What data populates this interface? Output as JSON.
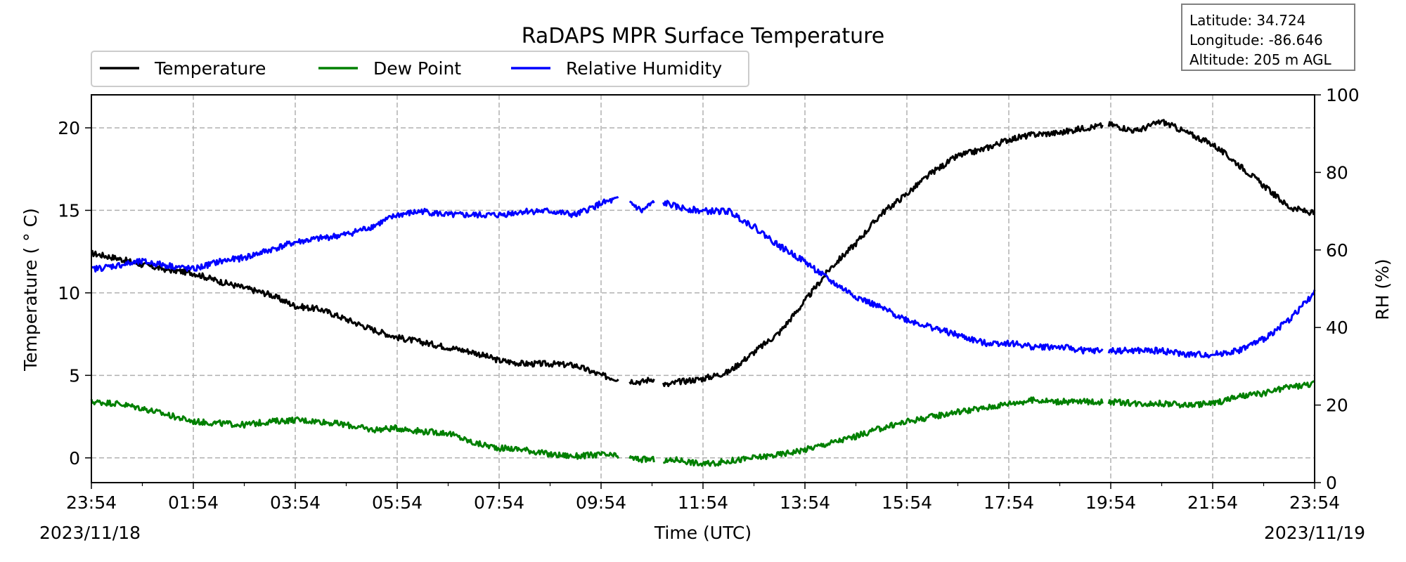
{
  "info_box": {
    "latitude": "Latitude: 34.724",
    "longitude": "Longitude: -86.646",
    "altitude": "Altitude: 205 m AGL"
  },
  "chart_data": {
    "type": "line",
    "title": "RaDAPS MPR Surface Temperature",
    "xlabel": "Time (UTC)",
    "ylabel": "Temperature ($^\\circ$C)",
    "ylabel_display": "Temperature ( ° C)",
    "y2label": "RH (%)",
    "x_ticks": [
      "23:54",
      "01:54",
      "03:54",
      "05:54",
      "07:54",
      "09:54",
      "11:54",
      "13:54",
      "15:54",
      "17:54",
      "19:54",
      "21:54",
      "23:54"
    ],
    "x_tick_hours": [
      0,
      2,
      4,
      6,
      8,
      10,
      12,
      14,
      16,
      18,
      20,
      22,
      24
    ],
    "start_date": "2023/11/18",
    "end_date": "2023/11/19",
    "xlim_hours": [
      0,
      24
    ],
    "ylim": [
      -1.5,
      22
    ],
    "y_ticks": [
      0,
      5,
      10,
      15,
      20
    ],
    "y2lim": [
      0,
      100
    ],
    "y2_ticks": [
      0,
      20,
      40,
      60,
      80,
      100
    ],
    "grid": true,
    "legend_location": "top-left",
    "colors": {
      "temperature": "#000000",
      "dew_point": "#008000",
      "rh": "#0000ff",
      "grid": "#b0b0b0"
    },
    "series": [
      {
        "name": "Temperature",
        "axis": "left",
        "x": [
          0,
          0.5,
          1,
          1.5,
          2,
          2.5,
          3,
          3.5,
          4,
          4.5,
          5,
          5.5,
          6,
          6.5,
          7,
          7.5,
          8,
          8.5,
          9,
          9.5,
          10,
          10.3,
          10.5,
          10.8,
          11,
          11.3,
          11.5,
          12,
          12.5,
          13,
          13.5,
          14,
          14.5,
          15,
          15.5,
          16,
          16.5,
          17,
          17.5,
          18,
          18.5,
          19,
          19.5,
          20,
          20.5,
          21,
          21.5,
          22,
          22.5,
          23,
          23.5,
          24
        ],
        "y": [
          12.4,
          12.1,
          11.7,
          11.4,
          11.2,
          10.7,
          10.3,
          9.9,
          9.2,
          9.0,
          8.4,
          7.8,
          7.3,
          7.0,
          6.7,
          6.4,
          5.9,
          5.7,
          5.7,
          5.6,
          5.0,
          4.8,
          4.7,
          4.6,
          4.8,
          4.4,
          4.6,
          4.8,
          5.2,
          6.4,
          7.6,
          9.5,
          11.5,
          13.0,
          14.8,
          16.0,
          17.3,
          18.3,
          18.7,
          19.3,
          19.6,
          19.7,
          20.0,
          20.2,
          19.8,
          20.4,
          19.7,
          19.0,
          17.8,
          16.5,
          15.2,
          14.8
        ],
        "gaps": [
          [
            10.35,
            10.55
          ],
          [
            11.05,
            11.2
          ],
          [
            19.85,
            19.95
          ]
        ]
      },
      {
        "name": "Dew Point",
        "axis": "left",
        "x": [
          0,
          0.5,
          1,
          1.5,
          2,
          2.5,
          3,
          3.5,
          4,
          4.5,
          5,
          5.5,
          6,
          6.5,
          7,
          7.5,
          8,
          8.5,
          9,
          9.5,
          10,
          10.3,
          10.5,
          10.8,
          11,
          11.3,
          11.5,
          12,
          12.5,
          13,
          13.5,
          14,
          14.5,
          15,
          15.5,
          16,
          16.5,
          17,
          17.5,
          18,
          18.5,
          19,
          19.5,
          20,
          20.5,
          21,
          21.5,
          22,
          22.5,
          23,
          23.5,
          24
        ],
        "y": [
          3.4,
          3.3,
          3.0,
          2.6,
          2.2,
          2.1,
          2.0,
          2.2,
          2.3,
          2.2,
          2.0,
          1.7,
          1.8,
          1.6,
          1.5,
          0.9,
          0.6,
          0.5,
          0.2,
          0.1,
          0.2,
          0.1,
          0.0,
          -0.1,
          -0.1,
          -0.2,
          -0.1,
          -0.4,
          -0.2,
          0.0,
          0.2,
          0.5,
          0.9,
          1.3,
          1.8,
          2.2,
          2.5,
          2.8,
          3.0,
          3.3,
          3.5,
          3.4,
          3.4,
          3.4,
          3.3,
          3.3,
          3.2,
          3.3,
          3.7,
          3.9,
          4.3,
          4.5
        ],
        "gaps": [
          [
            10.35,
            10.55
          ],
          [
            11.05,
            11.2
          ],
          [
            19.85,
            19.95
          ]
        ]
      },
      {
        "name": "Relative Humidity",
        "axis": "right",
        "x": [
          0,
          0.5,
          1,
          1.5,
          2,
          2.5,
          3,
          3.5,
          4,
          4.5,
          5,
          5.5,
          6,
          6.5,
          7,
          7.5,
          8,
          8.5,
          9,
          9.5,
          10,
          10.3,
          10.5,
          10.8,
          11,
          11.3,
          11.5,
          12,
          12.5,
          13,
          13.5,
          14,
          14.5,
          15,
          15.5,
          16,
          16.5,
          17,
          17.5,
          18,
          18.5,
          19,
          19.5,
          20,
          20.5,
          21,
          21.5,
          22,
          22.5,
          23,
          23.5,
          24
        ],
        "y": [
          55,
          56,
          57,
          56,
          55,
          57,
          58,
          60,
          62,
          63,
          64,
          66,
          69,
          70,
          69,
          69,
          69,
          70,
          70,
          69,
          72,
          73,
          73,
          70,
          72,
          72,
          71,
          70,
          70,
          66,
          61,
          57,
          52,
          48,
          45,
          42,
          40,
          38,
          36,
          36,
          35,
          35,
          34,
          34,
          34,
          34,
          33,
          33,
          34,
          37,
          42,
          49
        ],
        "gaps": [
          [
            10.35,
            10.55
          ],
          [
            11.05,
            11.2
          ],
          [
            19.85,
            19.95
          ]
        ]
      }
    ]
  }
}
